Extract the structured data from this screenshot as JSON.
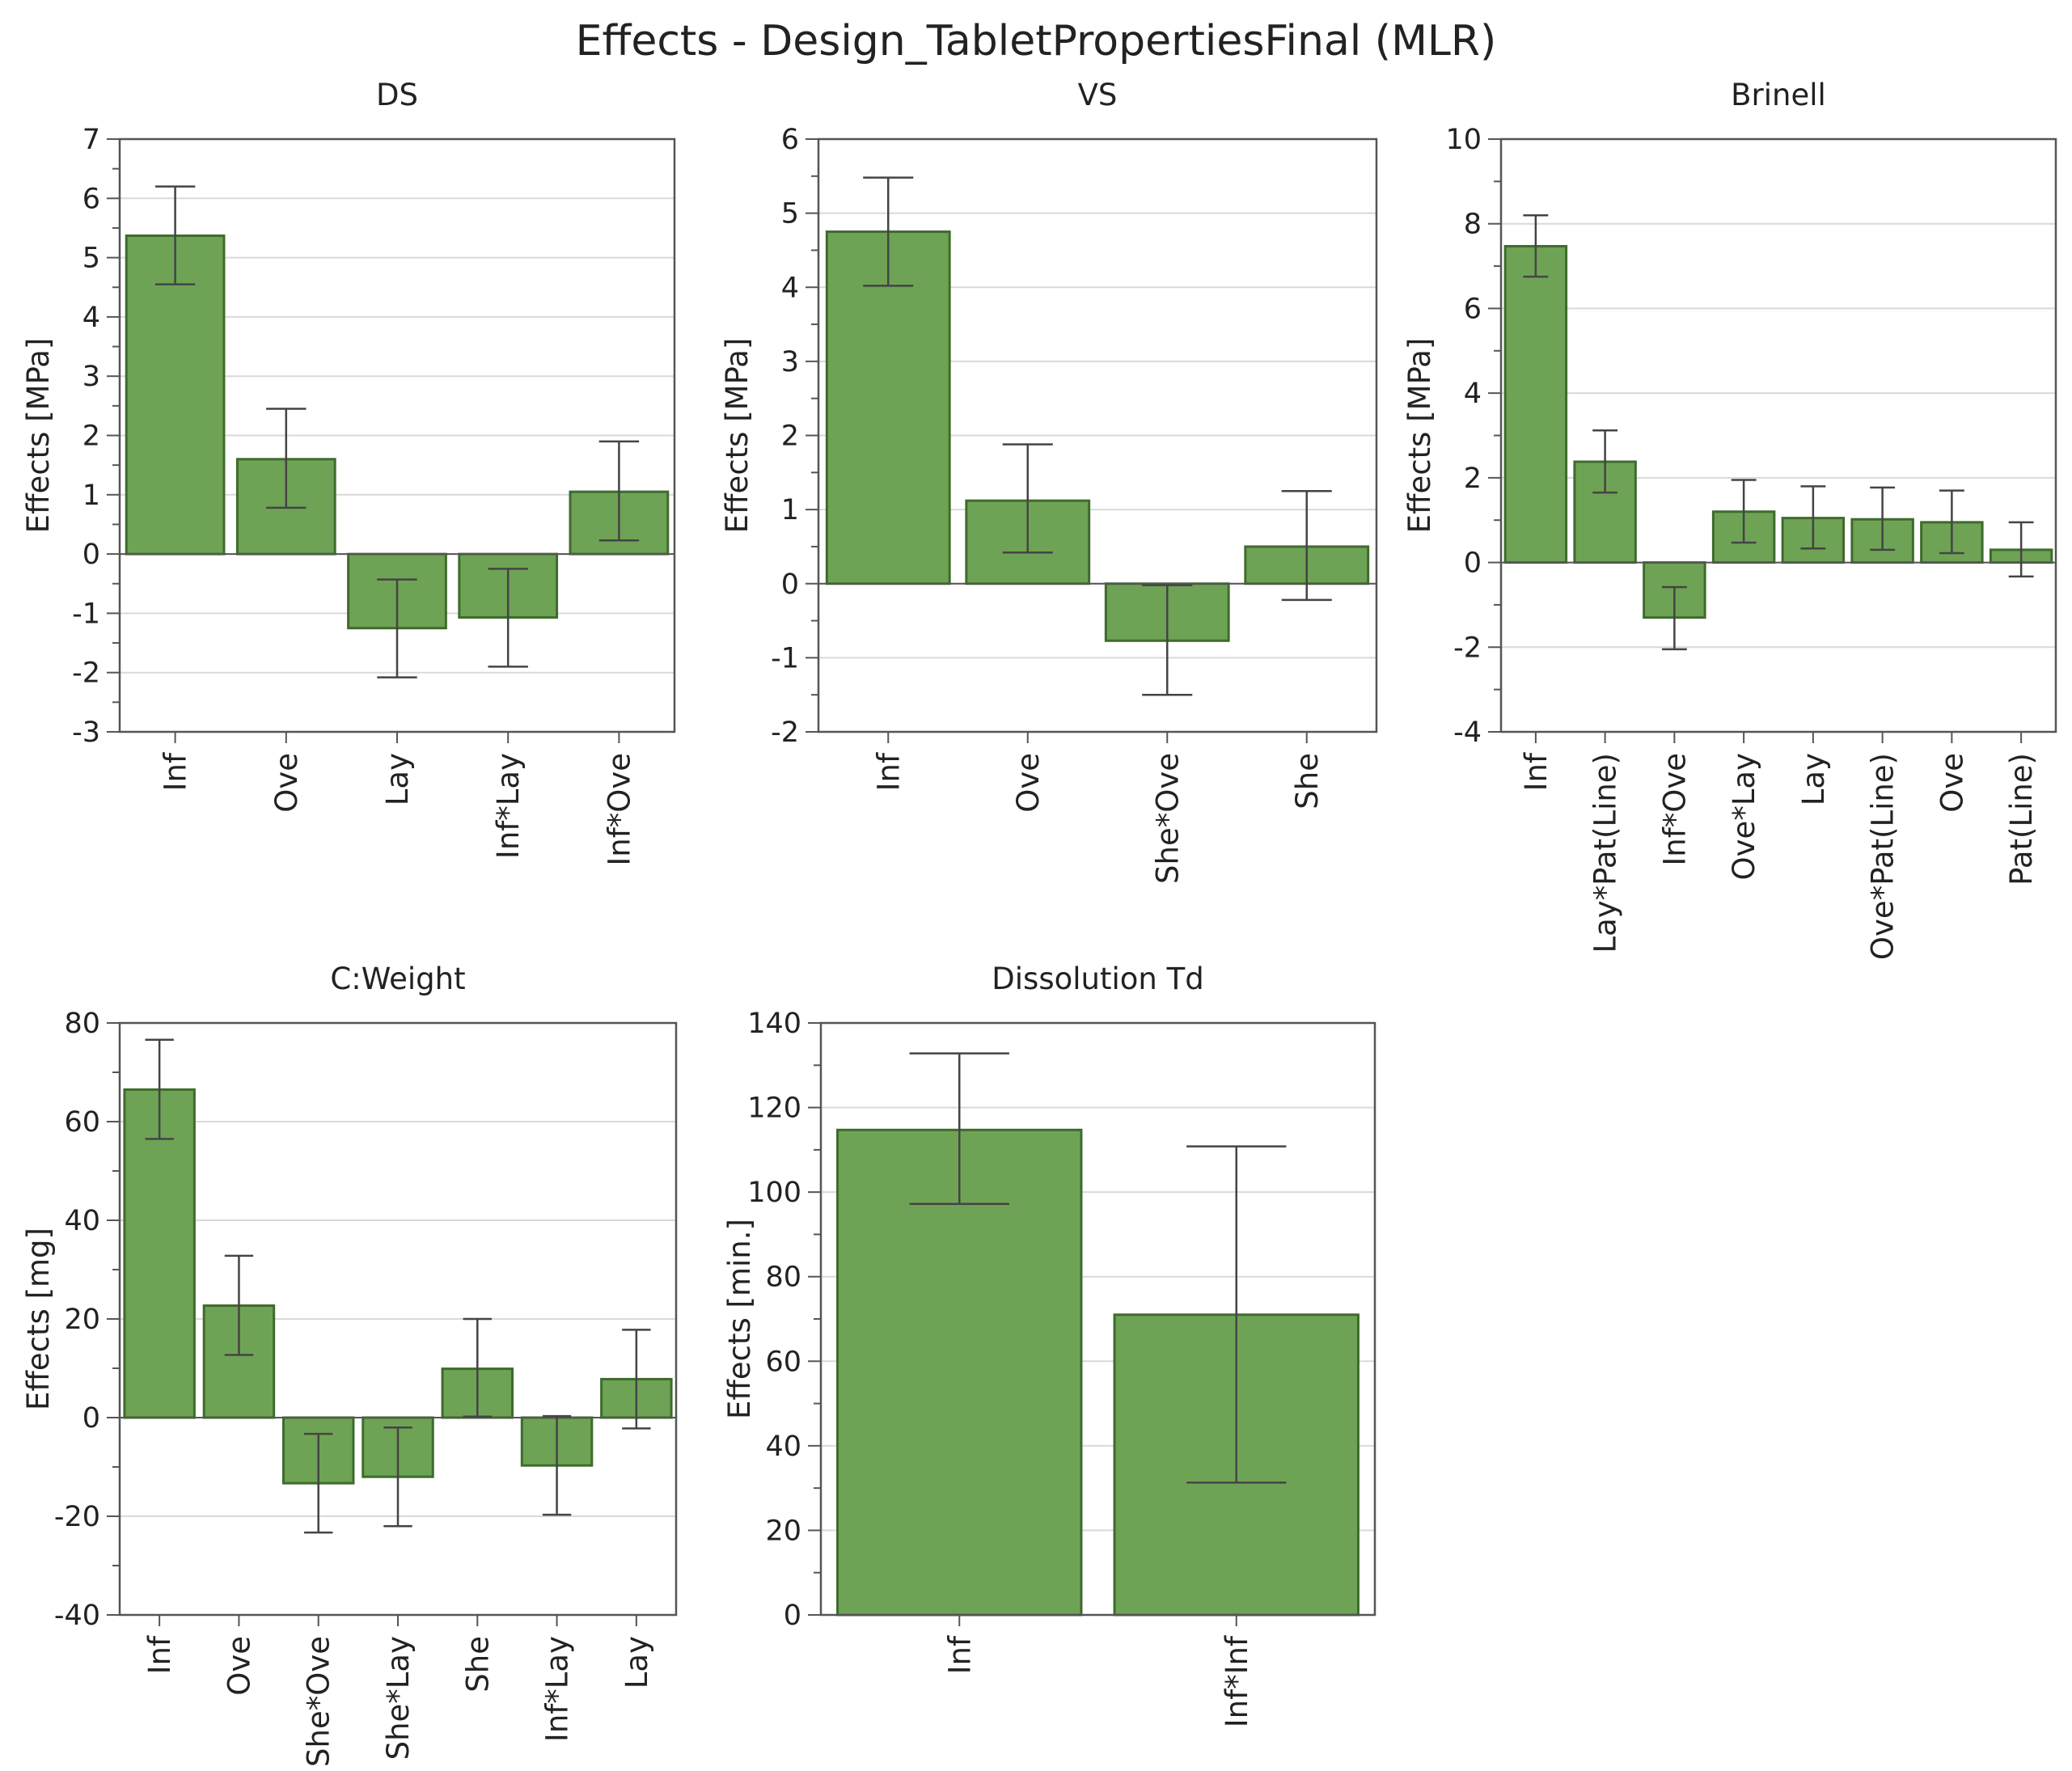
{
  "title": "Effects - Design_TabletPropertiesFinal (MLR)",
  "colors": {
    "bar_fill": "#6ea355",
    "bar_stroke": "#3f6b2d",
    "error_bar": "#444444",
    "grid": "#d9d9d9",
    "axis": "#555555",
    "text": "#222222"
  },
  "chart_data": [
    {
      "type": "bar",
      "title": "DS",
      "ylabel": "Effects [MPa]",
      "ylim": [
        -3,
        7
      ],
      "yticks": [
        -3,
        -2,
        -1,
        0,
        1,
        2,
        3,
        4,
        5,
        6,
        7
      ],
      "categories": [
        "Inf",
        "Ove",
        "Lay",
        "Inf*Lay",
        "Inf*Ove"
      ],
      "values": [
        5.37,
        1.6,
        -1.25,
        -1.07,
        1.05
      ],
      "error_low": [
        4.55,
        0.78,
        -2.08,
        -1.9,
        0.23
      ],
      "error_high": [
        6.2,
        2.45,
        -0.43,
        -0.25,
        1.9
      ]
    },
    {
      "type": "bar",
      "title": "VS",
      "ylabel": "Effects [MPa]",
      "ylim": [
        -2,
        6
      ],
      "yticks": [
        -2,
        -1,
        0,
        1,
        2,
        3,
        4,
        5,
        6
      ],
      "categories": [
        "Inf",
        "Ove",
        "She*Ove",
        "She"
      ],
      "values": [
        4.75,
        1.12,
        -0.77,
        0.5
      ],
      "error_low": [
        4.02,
        0.42,
        -1.5,
        -0.22
      ],
      "error_high": [
        5.48,
        1.88,
        -0.02,
        1.25
      ]
    },
    {
      "type": "bar",
      "title": "Brinell",
      "ylabel": "Effects [MPa]",
      "ylim": [
        -4,
        10
      ],
      "yticks": [
        -4,
        -2,
        0,
        2,
        4,
        6,
        8,
        10
      ],
      "categories": [
        "Inf",
        "Lay*Pat(Line)",
        "Inf*Ove",
        "Ove*Lay",
        "Lay",
        "Ove*Pat(Line)",
        "Ove",
        "Pat(Line)"
      ],
      "values": [
        7.47,
        2.38,
        -1.3,
        1.2,
        1.05,
        1.02,
        0.95,
        0.3
      ],
      "error_low": [
        6.75,
        1.65,
        -2.05,
        0.47,
        0.33,
        0.3,
        0.22,
        -0.33
      ],
      "error_high": [
        8.2,
        3.12,
        -0.58,
        1.95,
        1.8,
        1.77,
        1.7,
        0.95
      ]
    },
    {
      "type": "bar",
      "title": "C:Weight",
      "ylabel": "Effects [mg]",
      "ylim": [
        -40,
        80
      ],
      "yticks": [
        -40,
        -20,
        0,
        20,
        40,
        60,
        80
      ],
      "categories": [
        "Inf",
        "Ove",
        "She*Ove",
        "She*Lay",
        "She",
        "Inf*Lay",
        "Lay"
      ],
      "values": [
        66.5,
        22.7,
        -13.3,
        -12.0,
        9.9,
        -9.7,
        7.8
      ],
      "error_low": [
        56.5,
        12.7,
        -23.3,
        -22.0,
        0.2,
        -19.7,
        -2.2
      ],
      "error_high": [
        76.6,
        32.8,
        -3.3,
        -2.0,
        20.0,
        0.3,
        17.8
      ]
    },
    {
      "type": "bar",
      "title": "Dissolution Td",
      "ylabel": "Effects [min.]",
      "ylim": [
        0,
        140
      ],
      "yticks": [
        0,
        20,
        40,
        60,
        80,
        100,
        120,
        140
      ],
      "categories": [
        "Inf",
        "Inf*Inf"
      ],
      "values": [
        114.7,
        71.0
      ],
      "error_low": [
        97.2,
        31.3
      ],
      "error_high": [
        132.8,
        110.8
      ]
    }
  ]
}
